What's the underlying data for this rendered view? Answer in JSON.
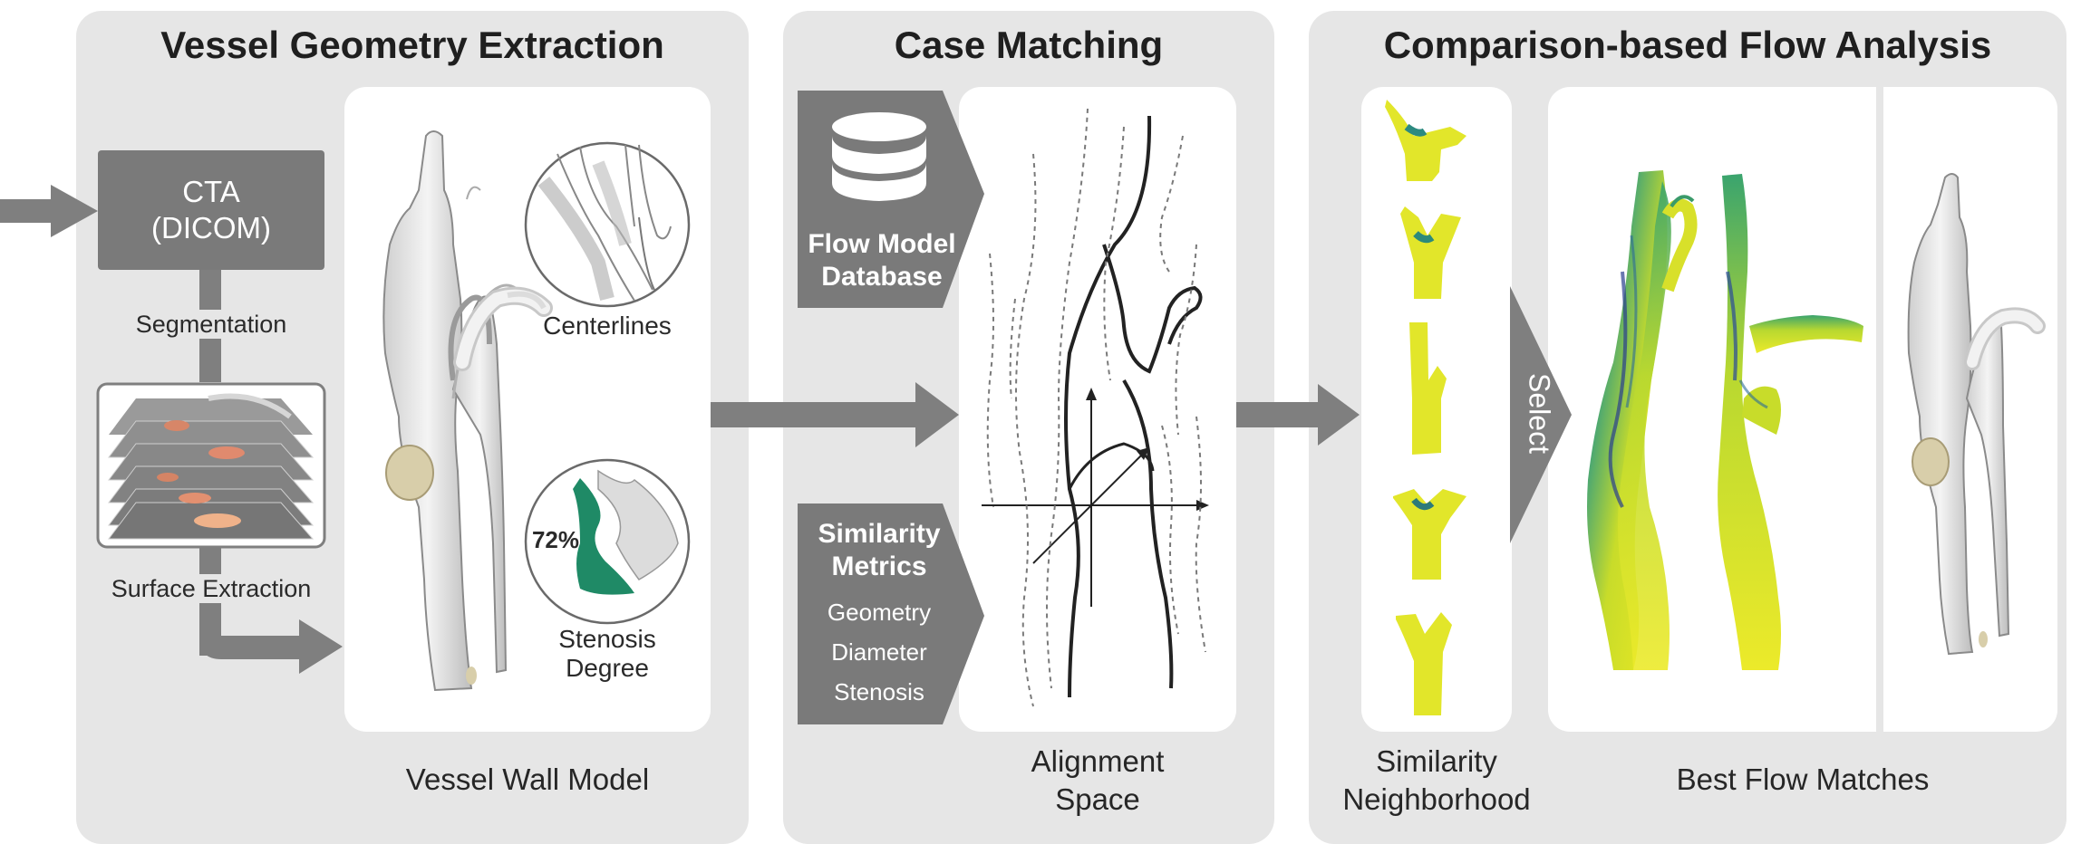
{
  "panels": {
    "vessel_geometry": {
      "title": "Vessel Geometry Extraction",
      "input_box": [
        "CTA",
        "(DICOM)"
      ],
      "step_segmentation": "Segmentation",
      "step_surface": "Surface Extraction",
      "inset_centerlines": "Centerlines",
      "inset_stenosis_value": "72%",
      "inset_stenosis_label": [
        "Stenosis",
        "Degree"
      ],
      "caption": "Vessel Wall Model"
    },
    "case_matching": {
      "title": "Case Matching",
      "database_label": [
        "Flow Model",
        "Database"
      ],
      "metrics_title": [
        "Similarity",
        "Metrics"
      ],
      "metrics_items": [
        "Geometry",
        "Diameter",
        "Stenosis"
      ],
      "caption": [
        "Alignment",
        "Space"
      ]
    },
    "flow_analysis": {
      "title": "Comparison-based Flow Analysis",
      "select_label": "Select",
      "caption_neighborhood": [
        "Similarity",
        "Neighborhood"
      ],
      "caption_matches": "Best Flow Matches"
    }
  },
  "colors": {
    "panel_bg": "#e6e6e6",
    "box_gray": "#7a7a7a",
    "arrow_gray": "#7f7f7f",
    "stenosis_green": "#1f8a66",
    "flow_yellow": "#e2e62a",
    "flow_blue": "#2a4a9a"
  },
  "icons": [
    "database-icon",
    "vessel-model",
    "slice-stack",
    "alignment-axes"
  ]
}
